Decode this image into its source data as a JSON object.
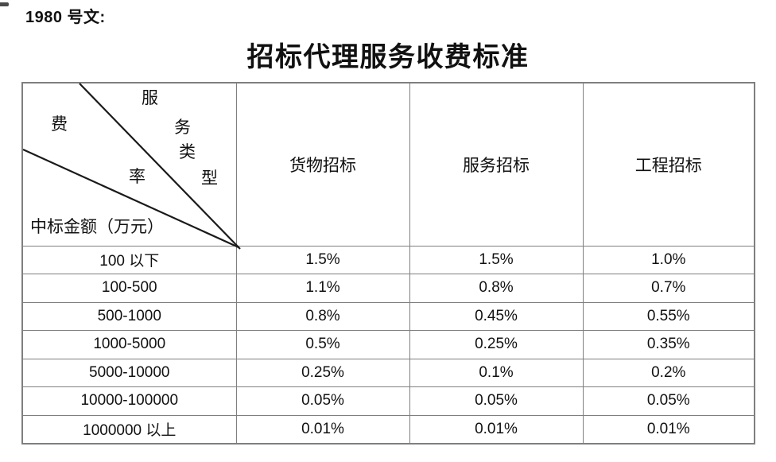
{
  "page": {
    "ref_label": "1980 号文:",
    "title": "招标代理服务收费标准"
  },
  "table": {
    "border_color": "#7f7f7f",
    "diagonal_line_color": "#1a1a1a",
    "corner": {
      "service_type_chars": [
        "服",
        "务",
        "类",
        "型"
      ],
      "fee_rate_chars": [
        "费",
        "率"
      ],
      "bottom_label": "中标金额（万元）"
    },
    "column_headers": [
      "货物招标",
      "服务招标",
      "工程招标"
    ],
    "rows": [
      {
        "amount_range": "100 以下",
        "rates": [
          "1.5%",
          "1.5%",
          "1.0%"
        ]
      },
      {
        "amount_range": "100-500",
        "rates": [
          "1.1%",
          "0.8%",
          "0.7%"
        ]
      },
      {
        "amount_range": "500-1000",
        "rates": [
          "0.8%",
          "0.45%",
          "0.55%"
        ]
      },
      {
        "amount_range": "1000-5000",
        "rates": [
          "0.5%",
          "0.25%",
          "0.35%"
        ]
      },
      {
        "amount_range": "5000-10000",
        "rates": [
          "0.25%",
          "0.1%",
          "0.2%"
        ]
      },
      {
        "amount_range": "10000-100000",
        "rates": [
          "0.05%",
          "0.05%",
          "0.05%"
        ]
      },
      {
        "amount_range": "1000000 以上",
        "rates": [
          "0.01%",
          "0.01%",
          "0.01%"
        ]
      }
    ]
  }
}
